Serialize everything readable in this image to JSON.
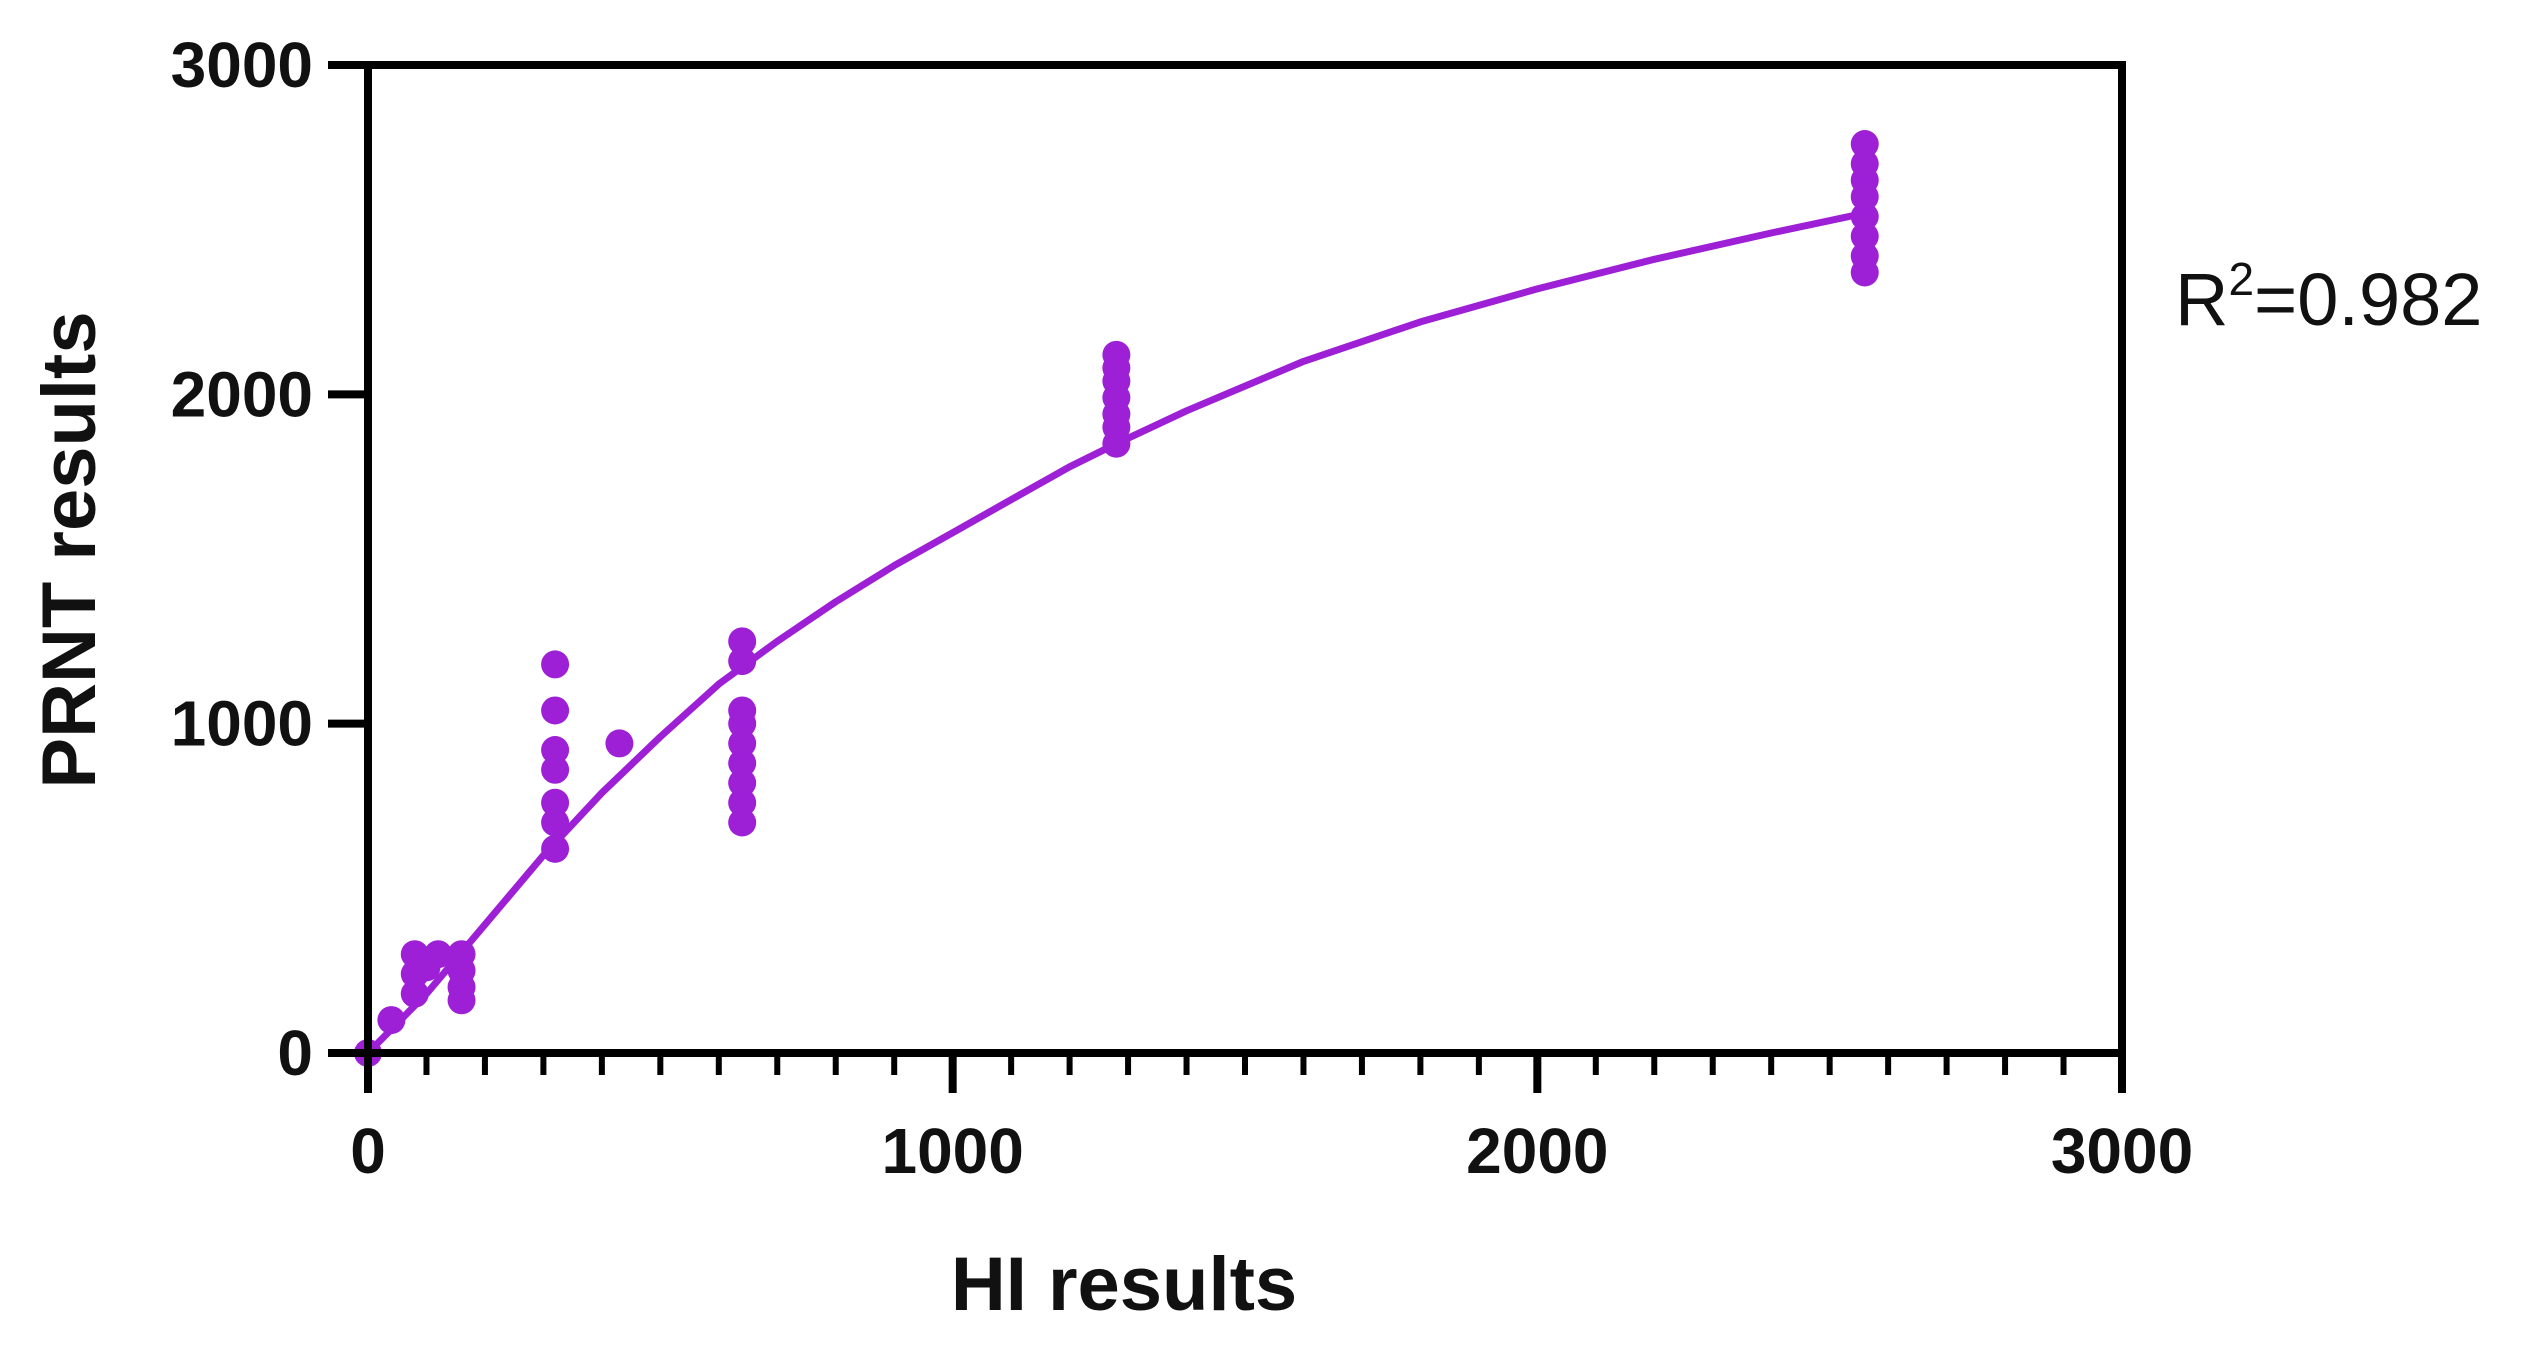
{
  "chart_data": {
    "type": "scatter",
    "title": "",
    "xlabel": "HI results",
    "ylabel": "PRNT results",
    "xlim": [
      0,
      3000
    ],
    "ylim": [
      0,
      3000
    ],
    "x_ticks": [
      "0",
      "1000",
      "2000",
      "3000"
    ],
    "y_ticks": [
      "0",
      "1000",
      "2000",
      "3000"
    ],
    "x_minor_step": 100,
    "grid": false,
    "legend": "none",
    "annotation": {
      "base": "R",
      "sup": "2",
      "rest": "=0.982"
    },
    "colors": {
      "series": "#9d1fd6",
      "axis": "#000000"
    },
    "series": [
      {
        "points": [
          [
            0,
            0
          ],
          [
            40,
            100
          ],
          [
            80,
            180
          ],
          [
            80,
            240
          ],
          [
            80,
            300
          ],
          [
            100,
            260
          ],
          [
            120,
            300
          ],
          [
            160,
            160
          ],
          [
            160,
            200
          ],
          [
            160,
            250
          ],
          [
            160,
            300
          ],
          [
            320,
            620
          ],
          [
            320,
            700
          ],
          [
            320,
            760
          ],
          [
            320,
            860
          ],
          [
            320,
            920
          ],
          [
            320,
            1040
          ],
          [
            320,
            1180
          ],
          [
            430,
            940
          ],
          [
            640,
            700
          ],
          [
            640,
            760
          ],
          [
            640,
            820
          ],
          [
            640,
            880
          ],
          [
            640,
            940
          ],
          [
            640,
            1000
          ],
          [
            640,
            1040
          ],
          [
            640,
            1190
          ],
          [
            640,
            1250
          ],
          [
            1280,
            1850
          ],
          [
            1280,
            1900
          ],
          [
            1280,
            1940
          ],
          [
            1280,
            1990
          ],
          [
            1280,
            2040
          ],
          [
            1280,
            2080
          ],
          [
            1280,
            2120
          ],
          [
            2560,
            2370
          ],
          [
            2560,
            2420
          ],
          [
            2560,
            2480
          ],
          [
            2560,
            2540
          ],
          [
            2560,
            2600
          ],
          [
            2560,
            2650
          ],
          [
            2560,
            2700
          ],
          [
            2560,
            2760
          ]
        ]
      }
    ],
    "fit_curve": {
      "x": [
        0,
        100,
        200,
        300,
        400,
        500,
        600,
        700,
        800,
        900,
        1000,
        1100,
        1200,
        1280,
        1400,
        1600,
        1800,
        2000,
        2200,
        2400,
        2560
      ],
      "y": [
        0,
        180,
        390,
        600,
        790,
        960,
        1120,
        1250,
        1370,
        1480,
        1580,
        1680,
        1780,
        1850,
        1950,
        2100,
        2220,
        2320,
        2410,
        2490,
        2550
      ]
    }
  }
}
